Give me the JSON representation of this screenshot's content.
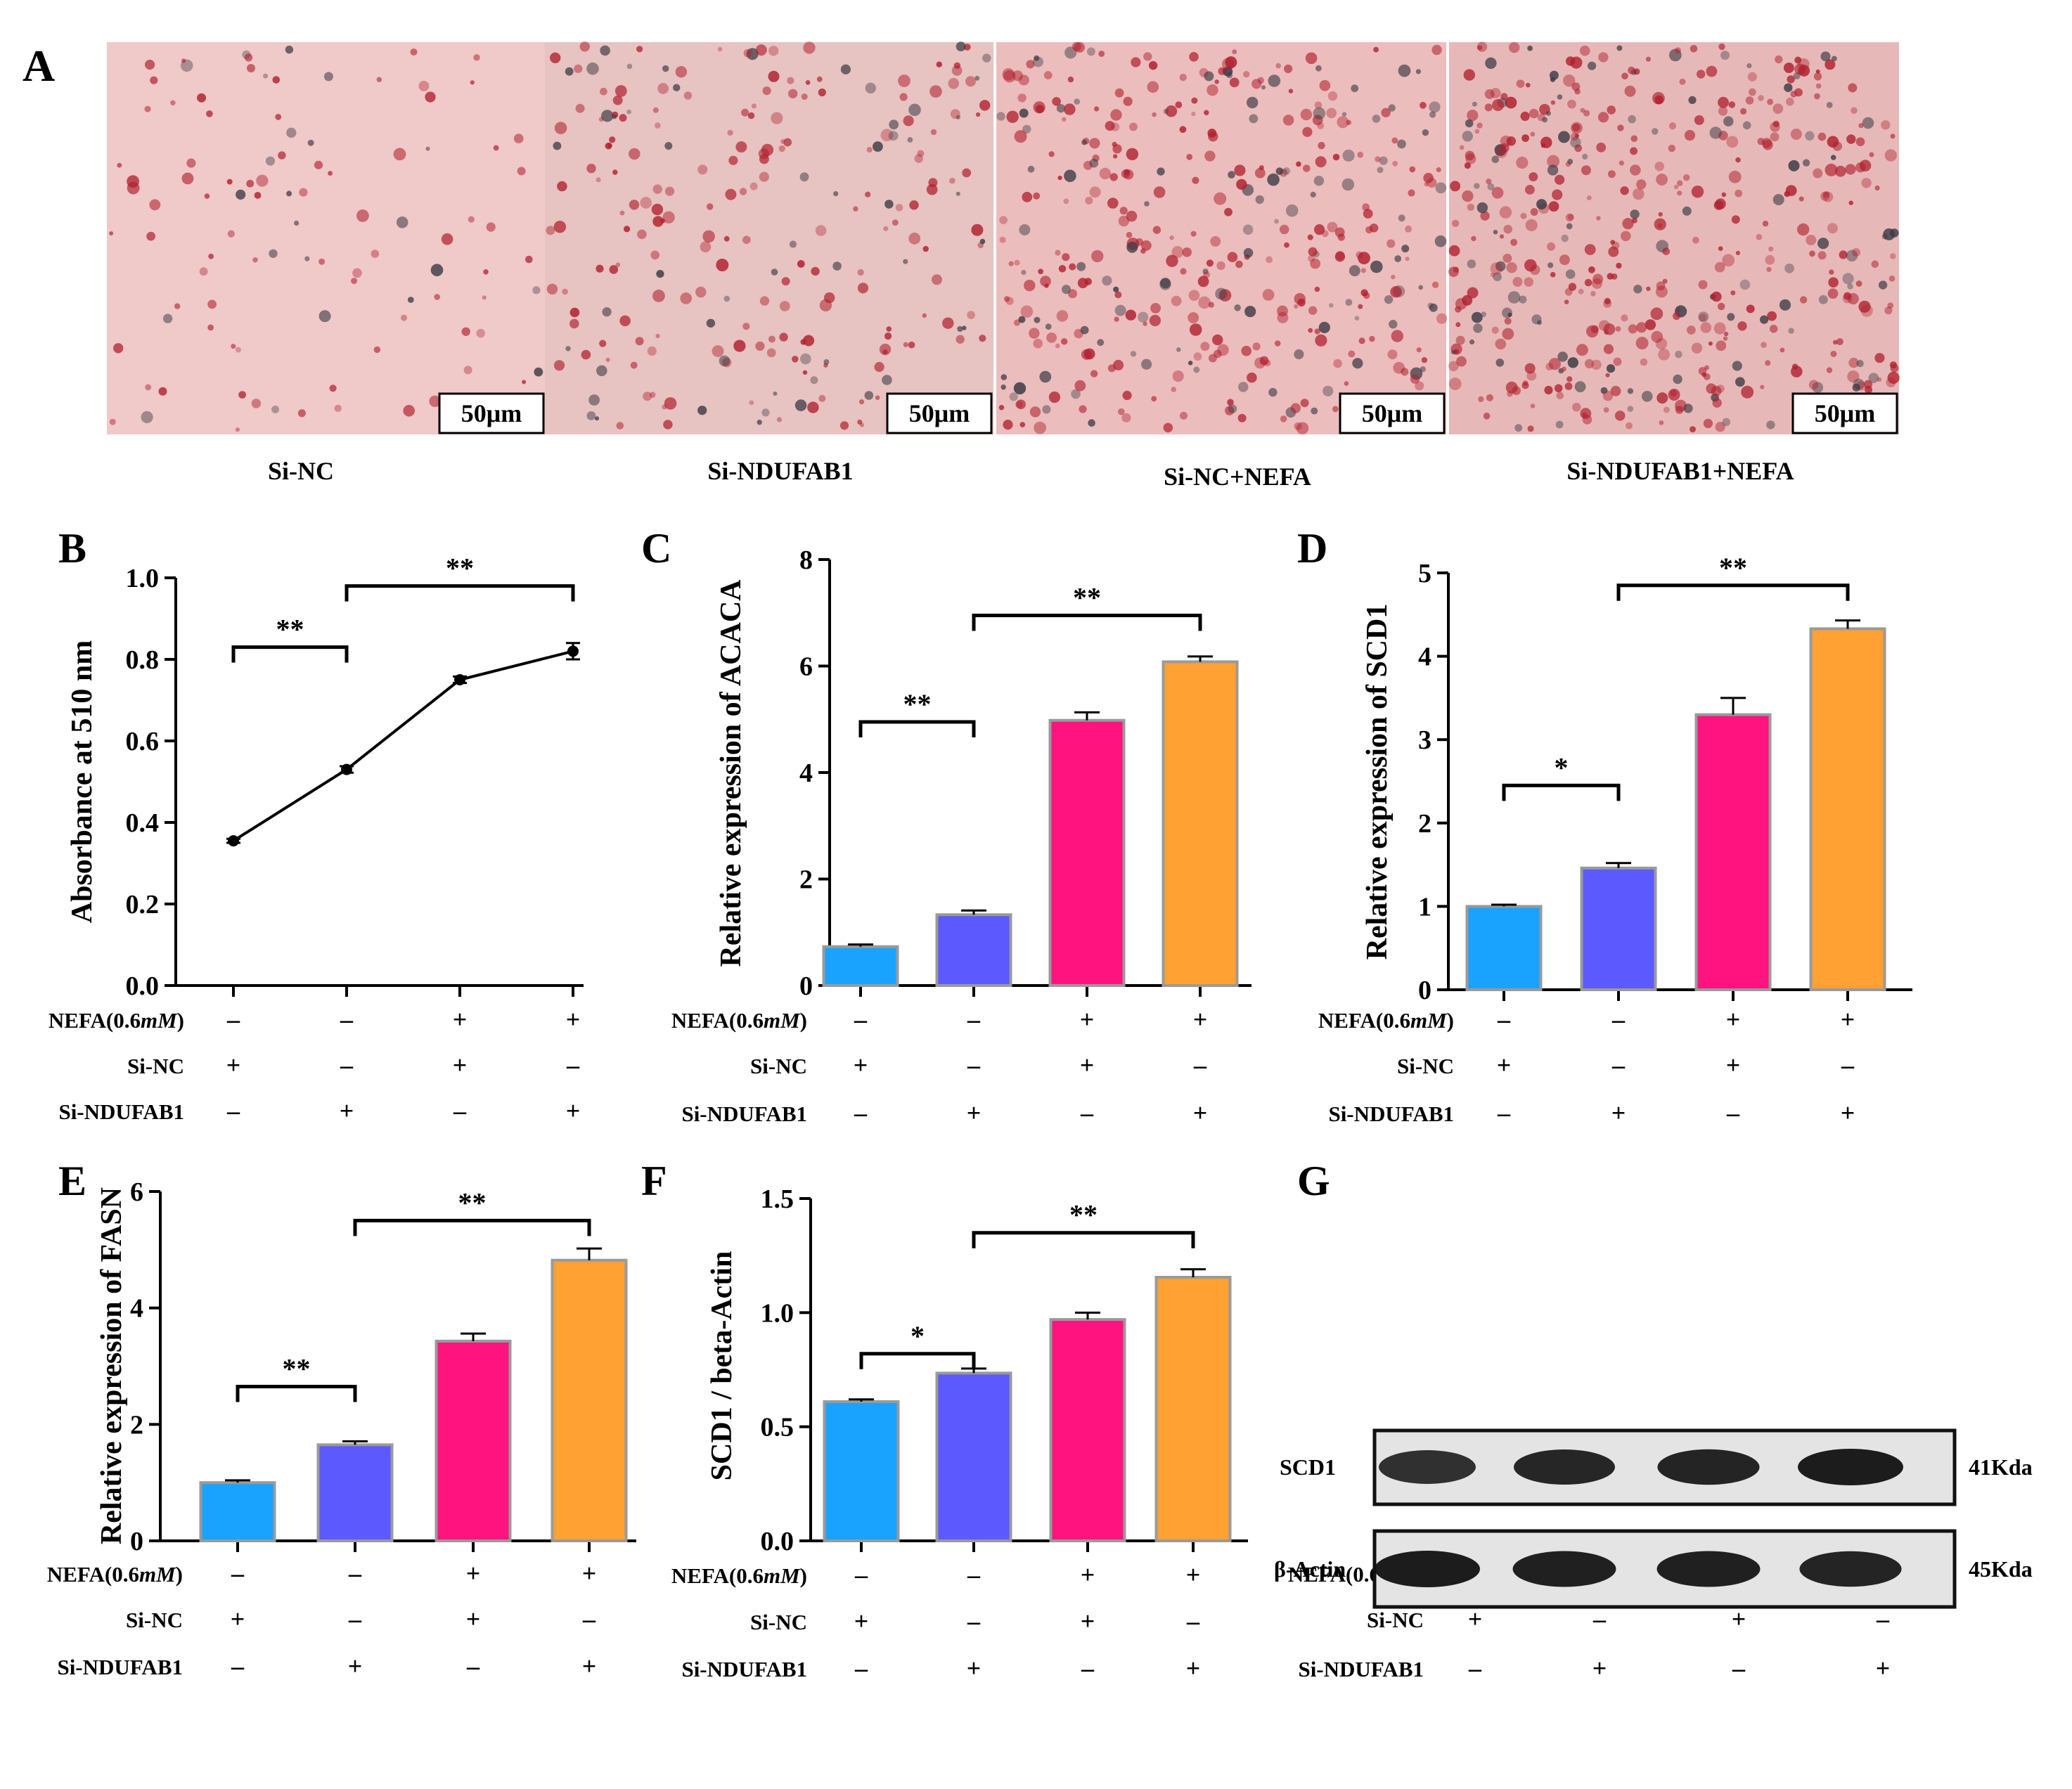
{
  "panel_labels": [
    "A",
    "B",
    "C",
    "D",
    "E",
    "F",
    "G"
  ],
  "colors": {
    "si_nc": "#19a3ff",
    "si_ndufab1": "#5c59ff",
    "si_nc_nefa": "#ff137f",
    "si_ndufab1_nefa": "#ffa133",
    "bar_border": "#9a9a9a",
    "axis": "#000000"
  },
  "micrographs": {
    "scale_bar_label": "50μm",
    "captions": [
      "Si-NC",
      "Si-NDUFAB1",
      "Si-NC+NEFA",
      "Si-NDUFAB1+NEFA"
    ],
    "stain_density": [
      0.12,
      0.38,
      0.7,
      0.88
    ]
  },
  "treatments": {
    "rows": [
      {
        "label_main": "NEFA(0.6",
        "label_italic": "mM",
        "label_tail": ")",
        "signs": [
          "–",
          "–",
          "+",
          "+"
        ]
      },
      {
        "label_main": "Si-NC",
        "label_italic": "",
        "label_tail": "",
        "signs": [
          "+",
          "–",
          "+",
          "–"
        ]
      },
      {
        "label_main": "Si-NDUFAB1",
        "label_italic": "",
        "label_tail": "",
        "signs": [
          "–",
          "+",
          "–",
          "+"
        ]
      }
    ]
  },
  "chart_data": [
    {
      "panel": "B",
      "type": "line",
      "title": "",
      "ylabel": "Absorbance  at  510  nm",
      "ylim": [
        0,
        1.0
      ],
      "yticks": [
        0,
        0.2,
        0.4,
        0.6,
        0.8,
        1.0
      ],
      "ytick_labels": [
        "0.0",
        "0.2",
        "0.4",
        "0.6",
        "0.8",
        "1.0"
      ],
      "categories": [
        "Si-NC",
        "Si-NDUFAB1",
        "Si-NC+NEFA",
        "Si-NDUFAB1+NEFA"
      ],
      "values": [
        0.355,
        0.53,
        0.75,
        0.82
      ],
      "errors": [
        0.005,
        0.008,
        0.008,
        0.02
      ],
      "significance": [
        {
          "from": 0,
          "to": 1,
          "label": "**",
          "level": 0.83
        },
        {
          "from": 1,
          "to": 3,
          "label": "**",
          "level": 0.98
        }
      ]
    },
    {
      "panel": "C",
      "type": "bar",
      "title": "",
      "ylabel": "Relative  expression of ACACA",
      "ylim": [
        0,
        8
      ],
      "yticks": [
        0,
        2,
        4,
        6,
        8
      ],
      "ytick_labels": [
        "0",
        "2",
        "4",
        "6",
        "8"
      ],
      "categories": [
        "Si-NC",
        "Si-NDUFAB1",
        "Si-NC+NEFA",
        "Si-NDUFAB1+NEFA"
      ],
      "values": [
        0.73,
        1.33,
        4.98,
        6.08
      ],
      "errors": [
        0.04,
        0.08,
        0.15,
        0.1
      ],
      "significance": [
        {
          "from": 0,
          "to": 1,
          "label": "**",
          "level": 4.95
        },
        {
          "from": 1,
          "to": 3,
          "label": "**",
          "level": 6.95
        }
      ]
    },
    {
      "panel": "D",
      "type": "bar",
      "title": "",
      "ylabel": "Relative  expression of SCD1",
      "ylim": [
        0,
        5
      ],
      "yticks": [
        0,
        1,
        2,
        3,
        4,
        5
      ],
      "ytick_labels": [
        "0",
        "1",
        "2",
        "3",
        "4",
        "5"
      ],
      "categories": [
        "Si-NC",
        "Si-NDUFAB1",
        "Si-NC+NEFA",
        "Si-NDUFAB1+NEFA"
      ],
      "values": [
        1.0,
        1.46,
        3.3,
        4.33
      ],
      "errors": [
        0.02,
        0.06,
        0.2,
        0.1
      ],
      "significance": [
        {
          "from": 0,
          "to": 1,
          "label": "*",
          "level": 2.45
        },
        {
          "from": 1,
          "to": 3,
          "label": "**",
          "level": 4.85
        }
      ]
    },
    {
      "panel": "E",
      "type": "bar",
      "title": "",
      "ylabel": "Relative  expression of FASN",
      "ylim": [
        0,
        6
      ],
      "yticks": [
        0,
        2,
        4,
        6
      ],
      "ytick_labels": [
        "0",
        "2",
        "4",
        "6"
      ],
      "categories": [
        "Si-NC",
        "Si-NDUFAB1",
        "Si-NC+NEFA",
        "Si-NDUFAB1+NEFA"
      ],
      "values": [
        1.0,
        1.65,
        3.43,
        4.82
      ],
      "errors": [
        0.04,
        0.06,
        0.13,
        0.2
      ],
      "significance": [
        {
          "from": 0,
          "to": 1,
          "label": "**",
          "level": 2.65
        },
        {
          "from": 1,
          "to": 3,
          "label": "**",
          "level": 5.5
        }
      ]
    },
    {
      "panel": "F",
      "type": "bar",
      "title": "",
      "ylabel": "SCD1 / beta-Actin",
      "ylim": [
        0,
        1.5
      ],
      "yticks": [
        0,
        0.5,
        1.0,
        1.5
      ],
      "ytick_labels": [
        "0.0",
        "0.5",
        "1.0",
        "1.5"
      ],
      "categories": [
        "Si-NC",
        "Si-NDUFAB1",
        "Si-NC+NEFA",
        "Si-NDUFAB1+NEFA"
      ],
      "values": [
        0.61,
        0.735,
        0.97,
        1.155
      ],
      "errors": [
        0.01,
        0.02,
        0.03,
        0.035
      ],
      "significance": [
        {
          "from": 0,
          "to": 1,
          "label": "*",
          "level": 0.82
        },
        {
          "from": 1,
          "to": 3,
          "label": "**",
          "level": 1.35
        }
      ]
    }
  ],
  "western_blot": {
    "panel": "G",
    "bands": [
      {
        "protein": "SCD1",
        "size": "41Kda",
        "intensity": [
          0.8,
          0.9,
          0.92,
          1.0
        ]
      },
      {
        "protein": "β-Actin",
        "size": "45Kda",
        "intensity": [
          1.0,
          0.95,
          0.95,
          0.92
        ]
      }
    ]
  }
}
